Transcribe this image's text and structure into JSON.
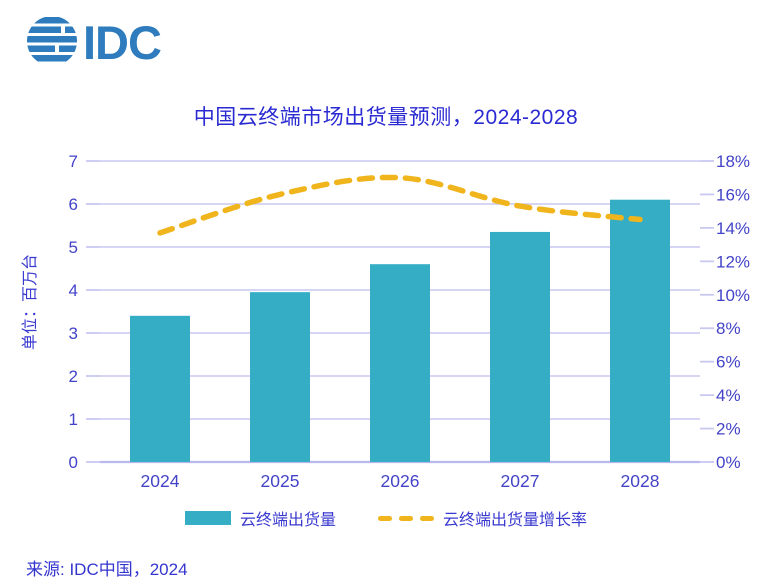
{
  "logo": {
    "text": "IDC"
  },
  "title": "中国云终端市场出货量预测，2024-2028",
  "source": "来源: IDC中国，2024",
  "legend": {
    "bar_label": "云终端出货量",
    "line_label": "云终端出货量增长率"
  },
  "chart_data": {
    "type": "bar+line",
    "title": "中国云终端市场出货量预测，2024-2028",
    "categories": [
      "2024",
      "2025",
      "2026",
      "2027",
      "2028"
    ],
    "series": [
      {
        "name": "云终端出货量",
        "type": "bar",
        "axis": "left",
        "values": [
          3.4,
          3.95,
          4.6,
          5.35,
          6.1
        ]
      },
      {
        "name": "云终端出货量增长率",
        "type": "line",
        "axis": "right",
        "values": [
          13.7,
          16.0,
          17.0,
          15.3,
          14.5
        ]
      }
    ],
    "left_axis": {
      "label": "单位：百万台",
      "min": 0,
      "max": 7,
      "step": 1,
      "ticks": [
        "0",
        "1",
        "2",
        "3",
        "4",
        "5",
        "6",
        "7"
      ]
    },
    "right_axis": {
      "min": 0,
      "max": 18,
      "step": 2,
      "ticks": [
        "0%",
        "2%",
        "4%",
        "6%",
        "8%",
        "10%",
        "12%",
        "14%",
        "16%",
        "18%"
      ],
      "format": "percent"
    },
    "grid": "horizontal",
    "legend_position": "bottom",
    "colors": {
      "bar": "#35adc5",
      "line": "#f0b41c",
      "grid": "#c9c9f0",
      "baseline": "#b9b9ee",
      "axis_text": "#4343c8",
      "title_text": "#2a2ad2",
      "logo_blue": "#2e7cbd"
    }
  }
}
